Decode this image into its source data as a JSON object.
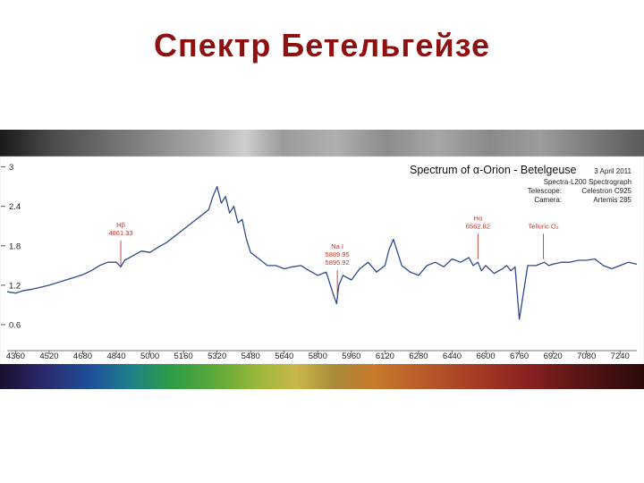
{
  "slide": {
    "title": "Спектр Бетельгейзе"
  },
  "colors": {
    "title": "#8e1010",
    "spectrum_line": "#2f4a8f",
    "annotation": "#c0392b",
    "plot_background": "#ffffff"
  },
  "chart_data": {
    "type": "line",
    "title": "Spectrum of α-Orion - Betelgeuse",
    "date": "3 April 2011",
    "info": [
      {
        "label": "",
        "value": "Spectra-L200 Spectrograph"
      },
      {
        "label": "Telescope:",
        "value": "Celestron C925"
      },
      {
        "label": "Camera:",
        "value": "Artemis 285"
      }
    ],
    "xlabel": "",
    "ylabel": "",
    "xlim": [
      4320,
      7320
    ],
    "ylim": [
      0.3,
      3.05
    ],
    "xticks": [
      4360,
      4520,
      4680,
      4840,
      5000,
      5160,
      5320,
      5480,
      5640,
      5800,
      5960,
      6120,
      6280,
      6440,
      6600,
      6760,
      6920,
      7080,
      7240
    ],
    "yticks": [
      0.6,
      1.2,
      1.8,
      2.4,
      3
    ],
    "grid": false,
    "legend": "none",
    "series": [
      {
        "x": [
          4320,
          4360,
          4400,
          4440,
          4480,
          4520,
          4560,
          4600,
          4640,
          4680,
          4720,
          4760,
          4800,
          4840,
          4861,
          4880,
          4920,
          4960,
          5000,
          5040,
          5080,
          5120,
          5160,
          5200,
          5240,
          5280,
          5300,
          5320,
          5340,
          5360,
          5380,
          5400,
          5420,
          5440,
          5460,
          5480,
          5520,
          5560,
          5600,
          5640,
          5680,
          5720,
          5760,
          5800,
          5840,
          5880,
          5890,
          5900,
          5920,
          5960,
          6000,
          6040,
          6080,
          6120,
          6140,
          6160,
          6180,
          6200,
          6240,
          6280,
          6320,
          6360,
          6400,
          6440,
          6480,
          6520,
          6540,
          6563,
          6580,
          6600,
          6640,
          6680,
          6700,
          6720,
          6740,
          6760,
          6800,
          6840,
          6880,
          6900,
          6920,
          6960,
          7000,
          7040,
          7080,
          7120,
          7160,
          7200,
          7240,
          7280,
          7320
        ],
        "y": [
          1.1,
          1.08,
          1.12,
          1.14,
          1.17,
          1.2,
          1.24,
          1.28,
          1.32,
          1.36,
          1.42,
          1.5,
          1.55,
          1.55,
          1.48,
          1.58,
          1.65,
          1.72,
          1.7,
          1.78,
          1.85,
          1.95,
          2.05,
          2.15,
          2.25,
          2.35,
          2.55,
          2.7,
          2.45,
          2.55,
          2.3,
          2.4,
          2.15,
          2.2,
          1.9,
          1.7,
          1.6,
          1.5,
          1.5,
          1.45,
          1.48,
          1.5,
          1.42,
          1.35,
          1.4,
          1.0,
          0.92,
          1.2,
          1.35,
          1.28,
          1.45,
          1.55,
          1.4,
          1.5,
          1.75,
          1.9,
          1.7,
          1.5,
          1.4,
          1.35,
          1.5,
          1.55,
          1.48,
          1.6,
          1.55,
          1.62,
          1.5,
          1.55,
          1.42,
          1.5,
          1.38,
          1.45,
          1.5,
          1.42,
          1.48,
          0.68,
          1.5,
          1.5,
          1.55,
          1.5,
          1.52,
          1.55,
          1.55,
          1.58,
          1.58,
          1.6,
          1.5,
          1.45,
          1.5,
          1.55,
          1.52
        ]
      }
    ],
    "annotations": [
      {
        "label": "Hβ",
        "value": "4861.33",
        "x": 4861.33,
        "y": 1.5
      },
      {
        "label": "Na I",
        "value_lines": [
          "5889.95",
          "5895.92"
        ],
        "x": 5892.9,
        "y": 1.05
      },
      {
        "label": "Hα",
        "value": "6562.82",
        "x": 6562.82,
        "y": 1.6
      },
      {
        "label": "Telluric O₂",
        "value": "",
        "x": 6875,
        "y": 1.6
      }
    ],
    "background_spectrum_strip": "grayscale-top",
    "color_spectrum_strip": "visible-rainbow-bottom"
  }
}
